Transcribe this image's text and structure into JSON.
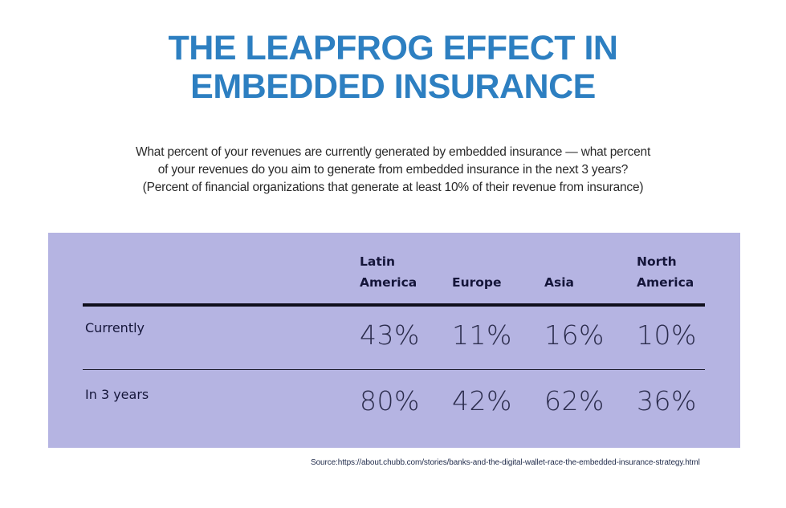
{
  "title": {
    "line1": "THE LEAPFROG EFFECT IN",
    "line2": "EMBEDDED INSURANCE"
  },
  "subtitle": {
    "line1": "What percent of your revenues are currently generated by embedded insurance — what percent",
    "line2": "of your revenues do you aim to generate from embedded insurance in the next 3 years?",
    "line3": "(Percent of financial organizations that generate at least 10% of their revenue from insurance)"
  },
  "colors": {
    "title": "#2d7fc1",
    "panel": "#b5b4e2",
    "text_dark": "#15163a"
  },
  "chart_data": {
    "type": "table",
    "title": "THE LEAPFROG EFFECT IN EMBEDDED INSURANCE",
    "columns": [
      {
        "line1": "Latin",
        "line2": "America"
      },
      {
        "line1": "",
        "line2": "Europe"
      },
      {
        "line1": "",
        "line2": "Asia"
      },
      {
        "line1": "North",
        "line2": "America"
      }
    ],
    "rows": [
      {
        "label": "Currently",
        "values": [
          "43%",
          "11%",
          "16%",
          "10%"
        ]
      },
      {
        "label": "In 3 years",
        "values": [
          "80%",
          "42%",
          "62%",
          "36%"
        ]
      }
    ]
  },
  "source": "Source:https://about.chubb.com/stories/banks-and-the-digital-wallet-race-the-embedded-insurance-strategy.html"
}
